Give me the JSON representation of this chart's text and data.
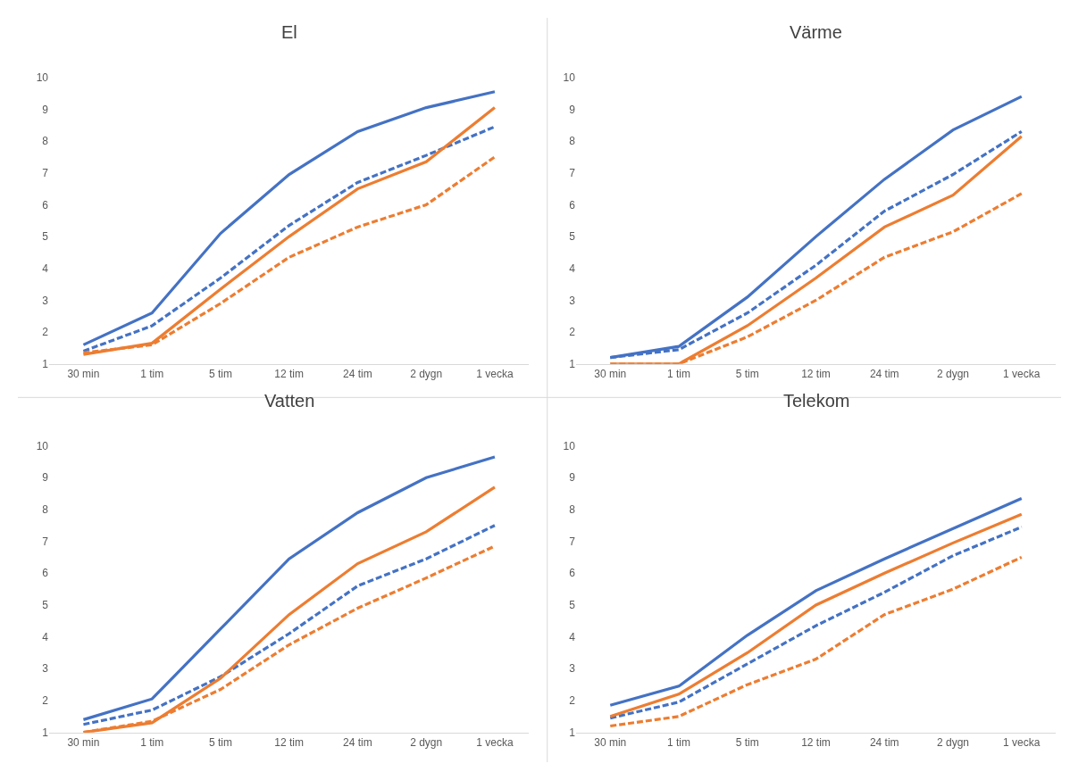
{
  "chart_data": [
    {
      "type": "line",
      "title": "El",
      "categories": [
        "30 min",
        "1 tim",
        "5 tim",
        "12 tim",
        "24 tim",
        "2 dygn",
        "1 vecka"
      ],
      "ylim": [
        1,
        10
      ],
      "yticks": [
        1,
        2,
        3,
        4,
        5,
        6,
        7,
        8,
        9,
        10
      ],
      "grid": false,
      "marker": "none",
      "series": [
        {
          "color": "#4472c4",
          "line_style": "solid",
          "values": [
            1.6,
            2.6,
            5.1,
            6.95,
            8.3,
            9.05,
            9.55
          ]
        },
        {
          "color": "#4472c4",
          "line_style": "dashed",
          "values": [
            1.4,
            2.2,
            3.7,
            5.35,
            6.7,
            7.55,
            8.45
          ]
        },
        {
          "color": "#ed7d31",
          "line_style": "solid",
          "values": [
            1.3,
            1.65,
            3.35,
            5.0,
            6.5,
            7.35,
            9.05
          ]
        },
        {
          "color": "#ed7d31",
          "line_style": "dashed",
          "values": [
            1.35,
            1.6,
            2.9,
            4.35,
            5.3,
            6.0,
            7.5
          ]
        }
      ]
    },
    {
      "type": "line",
      "title": "Värme",
      "categories": [
        "30 min",
        "1 tim",
        "5 tim",
        "12 tim",
        "24 tim",
        "2 dygn",
        "1 vecka"
      ],
      "ylim": [
        1,
        10
      ],
      "yticks": [
        1,
        2,
        3,
        4,
        5,
        6,
        7,
        8,
        9,
        10
      ],
      "grid": false,
      "marker": "none",
      "series": [
        {
          "color": "#4472c4",
          "line_style": "solid",
          "values": [
            1.2,
            1.55,
            3.1,
            5.0,
            6.8,
            8.35,
            9.4
          ]
        },
        {
          "color": "#4472c4",
          "line_style": "dashed",
          "values": [
            1.2,
            1.45,
            2.6,
            4.1,
            5.8,
            6.95,
            8.3
          ]
        },
        {
          "color": "#ed7d31",
          "line_style": "solid",
          "values": [
            1.0,
            1.0,
            2.2,
            3.7,
            5.3,
            6.3,
            8.15
          ]
        },
        {
          "color": "#ed7d31",
          "line_style": "dashed",
          "values": [
            1.0,
            1.0,
            1.85,
            3.0,
            4.35,
            5.15,
            6.35
          ]
        }
      ]
    },
    {
      "type": "line",
      "title": "Vatten",
      "categories": [
        "30 min",
        "1 tim",
        "5 tim",
        "12 tim",
        "24 tim",
        "2 dygn",
        "1 vecka"
      ],
      "ylim": [
        1,
        10
      ],
      "yticks": [
        1,
        2,
        3,
        4,
        5,
        6,
        7,
        8,
        9,
        10
      ],
      "grid": false,
      "marker": "none",
      "series": [
        {
          "color": "#4472c4",
          "line_style": "solid",
          "values": [
            1.4,
            2.05,
            4.25,
            6.45,
            7.9,
            9.0,
            9.65
          ]
        },
        {
          "color": "#4472c4",
          "line_style": "dashed",
          "values": [
            1.25,
            1.7,
            2.75,
            4.1,
            5.6,
            6.45,
            7.5
          ]
        },
        {
          "color": "#ed7d31",
          "line_style": "solid",
          "values": [
            1.0,
            1.3,
            2.7,
            4.7,
            6.3,
            7.3,
            8.7
          ]
        },
        {
          "color": "#ed7d31",
          "line_style": "dashed",
          "values": [
            1.0,
            1.35,
            2.35,
            3.75,
            4.9,
            5.85,
            6.85
          ]
        }
      ]
    },
    {
      "type": "line",
      "title": "Telekom",
      "categories": [
        "30 min",
        "1 tim",
        "5 tim",
        "12 tim",
        "24 tim",
        "2 dygn",
        "1 vecka"
      ],
      "ylim": [
        1,
        10
      ],
      "yticks": [
        1,
        2,
        3,
        4,
        5,
        6,
        7,
        8,
        9,
        10
      ],
      "grid": false,
      "marker": "none",
      "series": [
        {
          "color": "#4472c4",
          "line_style": "solid",
          "values": [
            1.85,
            2.45,
            4.05,
            5.45,
            6.45,
            7.4,
            8.35
          ]
        },
        {
          "color": "#4472c4",
          "line_style": "dashed",
          "values": [
            1.45,
            1.95,
            3.15,
            4.35,
            5.4,
            6.55,
            7.45
          ]
        },
        {
          "color": "#ed7d31",
          "line_style": "solid",
          "values": [
            1.5,
            2.2,
            3.5,
            5.0,
            6.0,
            6.95,
            7.85
          ]
        },
        {
          "color": "#ed7d31",
          "line_style": "dashed",
          "values": [
            1.2,
            1.5,
            2.5,
            3.3,
            4.7,
            5.5,
            6.5
          ]
        }
      ]
    }
  ]
}
